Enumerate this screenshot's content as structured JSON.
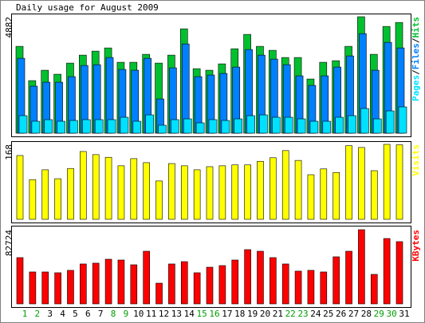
{
  "chart_data": [
    {
      "type": "bar",
      "title": "Daily usage for August 2009",
      "categories": [
        "1",
        "2",
        "3",
        "4",
        "5",
        "6",
        "7",
        "8",
        "9",
        "10",
        "11",
        "12",
        "13",
        "14",
        "15",
        "16",
        "17",
        "18",
        "19",
        "20",
        "21",
        "22",
        "23",
        "24",
        "25",
        "26",
        "27",
        "28",
        "29",
        "30",
        "31"
      ],
      "legend_separator": "/",
      "series": [
        {
          "name": "Hits",
          "color": "#00c030",
          "values": [
            3641,
            2204,
            2639,
            2472,
            2939,
            3273,
            3440,
            3574,
            2973,
            2973,
            3307,
            2939,
            3273,
            4375,
            2705,
            2639,
            2906,
            3540,
            4142,
            3641,
            3474,
            3173,
            3173,
            2271,
            2973,
            3039,
            3641,
            4882,
            3307,
            4476,
            4643
          ]
        },
        {
          "name": "Files",
          "color": "#0080ff",
          "values": [
            3140,
            1971,
            2138,
            2138,
            2371,
            2839,
            2872,
            3173,
            2672,
            2639,
            3140,
            1436,
            2739,
            3741,
            2371,
            2438,
            2505,
            2772,
            3507,
            3273,
            3106,
            2872,
            2405,
            2004,
            2405,
            2772,
            3240,
            4175,
            2639,
            3808,
            3574
          ]
        },
        {
          "name": "Pages",
          "color": "#00e0ff",
          "values": [
            735,
            501,
            568,
            501,
            534,
            568,
            568,
            568,
            668,
            501,
            768,
            334,
            568,
            601,
            434,
            568,
            534,
            601,
            735,
            768,
            668,
            668,
            601,
            501,
            501,
            668,
            735,
            1035,
            601,
            935,
            1102
          ]
        }
      ],
      "ylim": [
        0,
        4882
      ],
      "yticks": [
        4882
      ]
    },
    {
      "type": "bar",
      "series": [
        {
          "name": "Visits",
          "color": "#ffff00",
          "values": [
            143,
            89,
            111,
            91,
            114,
            152,
            145,
            139,
            120,
            136,
            127,
            86,
            125,
            120,
            111,
            118,
            120,
            122,
            122,
            130,
            138,
            154,
            132,
            100,
            113,
            105,
            165,
            161,
            109,
            168,
            167
          ]
        }
      ],
      "ylim": [
        0,
        168
      ],
      "yticks": [
        168
      ]
    },
    {
      "type": "bar",
      "categories": [
        "1",
        "2",
        "3",
        "4",
        "5",
        "6",
        "7",
        "8",
        "9",
        "10",
        "11",
        "12",
        "13",
        "14",
        "15",
        "16",
        "17",
        "18",
        "19",
        "20",
        "21",
        "22",
        "23",
        "24",
        "25",
        "26",
        "27",
        "28",
        "29",
        "30",
        "31"
      ],
      "category_colors": [
        "#00a000",
        "#00a000",
        "#000000",
        "#000000",
        "#000000",
        "#000000",
        "#000000",
        "#00a000",
        "#00a000",
        "#000000",
        "#000000",
        "#000000",
        "#000000",
        "#000000",
        "#00a000",
        "#00a000",
        "#000000",
        "#000000",
        "#000000",
        "#000000",
        "#000000",
        "#00a000",
        "#00a000",
        "#000000",
        "#000000",
        "#000000",
        "#000000",
        "#000000",
        "#00a000",
        "#00a000",
        "#000000"
      ],
      "series": [
        {
          "name": "KBytes",
          "color": "#ff0000",
          "values": [
            51600,
            35600,
            35600,
            34700,
            37400,
            44500,
            45400,
            49800,
            48900,
            43600,
            58700,
            23100,
            44500,
            47100,
            34700,
            40900,
            42700,
            48900,
            60500,
            58700,
            51600,
            44500,
            36500,
            37400,
            35600,
            52500,
            58700,
            82724,
            32900,
            72900,
            69400
          ]
        }
      ],
      "ylim": [
        0,
        82724
      ],
      "yticks": [
        82724
      ]
    }
  ]
}
